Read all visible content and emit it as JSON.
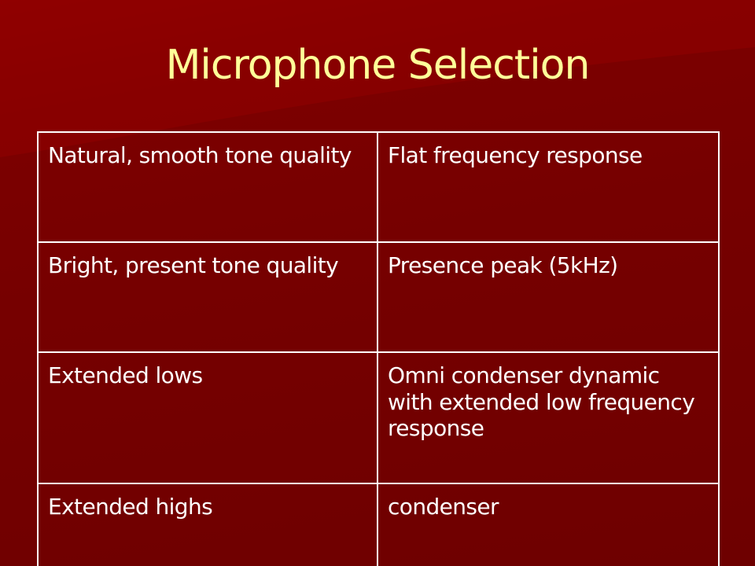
{
  "slide": {
    "title": "Microphone Selection",
    "colors": {
      "background": "#7a0000",
      "title": "#ffff99",
      "text": "#ffffff",
      "border": "#ffffff"
    },
    "table": {
      "rows": [
        {
          "need": "Natural, smooth tone quality",
          "solution": "Flat frequency response"
        },
        {
          "need": "Bright, present tone quality",
          "solution": "Presence peak (5kHz)"
        },
        {
          "need": "Extended lows",
          "solution": "Omni condenser dynamic with extended low frequency response"
        },
        {
          "need": "Extended highs",
          "solution": "condenser"
        }
      ]
    }
  }
}
